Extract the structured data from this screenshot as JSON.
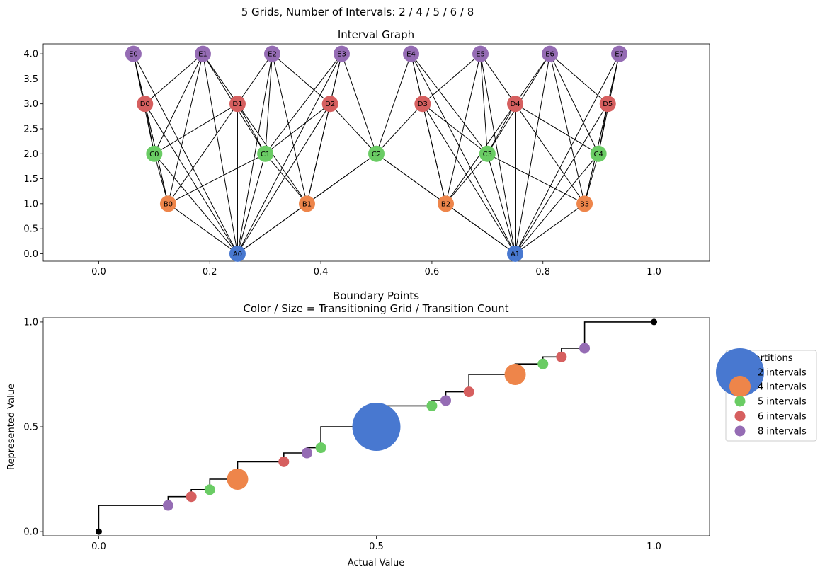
{
  "suptitle": "5 Grids, Number of Intervals: 2 / 4 / 5 / 6 / 8",
  "colors": {
    "A": "#4878d0",
    "B": "#ee854a",
    "C": "#6acc64",
    "D": "#d65f5f",
    "E": "#956cb4",
    "endpoint": "#000000"
  },
  "chart_data": [
    {
      "type": "network",
      "title": "Interval Graph",
      "xlim": [
        -0.1,
        1.1
      ],
      "ylim": [
        -0.15,
        4.2
      ],
      "xticks": [
        "0.0",
        "0.2",
        "0.4",
        "0.6",
        "0.8",
        "1.0"
      ],
      "xtick_values": [
        0,
        0.2,
        0.4,
        0.6,
        0.8,
        1.0
      ],
      "yticks": [
        "0.0",
        "0.5",
        "1.0",
        "1.5",
        "2.0",
        "2.5",
        "3.0",
        "3.5",
        "4.0"
      ],
      "ytick_values": [
        0,
        0.5,
        1,
        1.5,
        2,
        2.5,
        3,
        3.5,
        4
      ],
      "grid": false,
      "nodes": [
        {
          "id": "A0",
          "group": "A",
          "x": 0.25,
          "y": 0
        },
        {
          "id": "A1",
          "group": "A",
          "x": 0.75,
          "y": 0
        },
        {
          "id": "B0",
          "group": "B",
          "x": 0.125,
          "y": 1
        },
        {
          "id": "B1",
          "group": "B",
          "x": 0.375,
          "y": 1
        },
        {
          "id": "B2",
          "group": "B",
          "x": 0.625,
          "y": 1
        },
        {
          "id": "B3",
          "group": "B",
          "x": 0.875,
          "y": 1
        },
        {
          "id": "C0",
          "group": "C",
          "x": 0.1,
          "y": 2
        },
        {
          "id": "C1",
          "group": "C",
          "x": 0.3,
          "y": 2
        },
        {
          "id": "C2",
          "group": "C",
          "x": 0.5,
          "y": 2
        },
        {
          "id": "C3",
          "group": "C",
          "x": 0.7,
          "y": 2
        },
        {
          "id": "C4",
          "group": "C",
          "x": 0.9,
          "y": 2
        },
        {
          "id": "D0",
          "group": "D",
          "x": 0.0833,
          "y": 3
        },
        {
          "id": "D1",
          "group": "D",
          "x": 0.25,
          "y": 3
        },
        {
          "id": "D2",
          "group": "D",
          "x": 0.4167,
          "y": 3
        },
        {
          "id": "D3",
          "group": "D",
          "x": 0.5833,
          "y": 3
        },
        {
          "id": "D4",
          "group": "D",
          "x": 0.75,
          "y": 3
        },
        {
          "id": "D5",
          "group": "D",
          "x": 0.9167,
          "y": 3
        },
        {
          "id": "E0",
          "group": "E",
          "x": 0.0625,
          "y": 4
        },
        {
          "id": "E1",
          "group": "E",
          "x": 0.1875,
          "y": 4
        },
        {
          "id": "E2",
          "group": "E",
          "x": 0.3125,
          "y": 4
        },
        {
          "id": "E3",
          "group": "E",
          "x": 0.4375,
          "y": 4
        },
        {
          "id": "E4",
          "group": "E",
          "x": 0.5625,
          "y": 4
        },
        {
          "id": "E5",
          "group": "E",
          "x": 0.6875,
          "y": 4
        },
        {
          "id": "E6",
          "group": "E",
          "x": 0.8125,
          "y": 4
        },
        {
          "id": "E7",
          "group": "E",
          "x": 0.9375,
          "y": 4
        }
      ],
      "edges": [
        [
          "A0",
          "B0"
        ],
        [
          "A0",
          "B1"
        ],
        [
          "A0",
          "C0"
        ],
        [
          "A0",
          "C1"
        ],
        [
          "A0",
          "D0"
        ],
        [
          "A0",
          "D1"
        ],
        [
          "A0",
          "D2"
        ],
        [
          "A0",
          "E0"
        ],
        [
          "A0",
          "E1"
        ],
        [
          "A0",
          "E2"
        ],
        [
          "A0",
          "E3"
        ],
        [
          "A1",
          "B2"
        ],
        [
          "A1",
          "B3"
        ],
        [
          "A1",
          "C3"
        ],
        [
          "A1",
          "C4"
        ],
        [
          "A1",
          "D3"
        ],
        [
          "A1",
          "D4"
        ],
        [
          "A1",
          "D5"
        ],
        [
          "A1",
          "E4"
        ],
        [
          "A1",
          "E5"
        ],
        [
          "A1",
          "E6"
        ],
        [
          "A1",
          "E7"
        ],
        [
          "A0",
          "C2"
        ],
        [
          "A1",
          "C2"
        ],
        [
          "B0",
          "C0"
        ],
        [
          "B0",
          "C1"
        ],
        [
          "B0",
          "D0"
        ],
        [
          "B0",
          "D1"
        ],
        [
          "B0",
          "E0"
        ],
        [
          "B0",
          "E1"
        ],
        [
          "B1",
          "C1"
        ],
        [
          "B1",
          "C2"
        ],
        [
          "B1",
          "D1"
        ],
        [
          "B1",
          "D2"
        ],
        [
          "B1",
          "E2"
        ],
        [
          "B1",
          "E3"
        ],
        [
          "B2",
          "C2"
        ],
        [
          "B2",
          "C3"
        ],
        [
          "B2",
          "D3"
        ],
        [
          "B2",
          "D4"
        ],
        [
          "B2",
          "E4"
        ],
        [
          "B2",
          "E5"
        ],
        [
          "B3",
          "C3"
        ],
        [
          "B3",
          "C4"
        ],
        [
          "B3",
          "D4"
        ],
        [
          "B3",
          "D5"
        ],
        [
          "B3",
          "E6"
        ],
        [
          "B3",
          "E7"
        ],
        [
          "C0",
          "D0"
        ],
        [
          "C0",
          "D1"
        ],
        [
          "C0",
          "E0"
        ],
        [
          "C0",
          "E1"
        ],
        [
          "C1",
          "D1"
        ],
        [
          "C1",
          "D2"
        ],
        [
          "C1",
          "E1"
        ],
        [
          "C1",
          "E2"
        ],
        [
          "C1",
          "E3"
        ],
        [
          "C2",
          "D2"
        ],
        [
          "C2",
          "D3"
        ],
        [
          "C2",
          "E3"
        ],
        [
          "C2",
          "E4"
        ],
        [
          "C3",
          "D3"
        ],
        [
          "C3",
          "D4"
        ],
        [
          "C3",
          "E4"
        ],
        [
          "C3",
          "E5"
        ],
        [
          "C3",
          "E6"
        ],
        [
          "C4",
          "D4"
        ],
        [
          "C4",
          "D5"
        ],
        [
          "C4",
          "E6"
        ],
        [
          "C4",
          "E7"
        ],
        [
          "D0",
          "E0"
        ],
        [
          "D0",
          "E1"
        ],
        [
          "D1",
          "E1"
        ],
        [
          "D1",
          "E2"
        ],
        [
          "D2",
          "E2"
        ],
        [
          "D2",
          "E3"
        ],
        [
          "D3",
          "E4"
        ],
        [
          "D3",
          "E5"
        ],
        [
          "D4",
          "E5"
        ],
        [
          "D4",
          "E6"
        ],
        [
          "D5",
          "E6"
        ],
        [
          "D5",
          "E7"
        ]
      ]
    },
    {
      "type": "step-scatter",
      "title": "Boundary Points",
      "subtitle": "Color / Size = Transitioning Grid / Transition Count",
      "xlabel": "Actual Value",
      "ylabel": "Represented Value",
      "xlim": [
        -0.1,
        1.1
      ],
      "ylim": [
        -0.02,
        1.02
      ],
      "xticks": [
        "0.0",
        "0.5",
        "1.0"
      ],
      "xtick_values": [
        0,
        0.5,
        1
      ],
      "yticks": [
        "0.0",
        "0.5",
        "1.0"
      ],
      "ytick_values": [
        0,
        0.5,
        1
      ],
      "grid": false,
      "legend": {
        "title": "Partitions",
        "placement": "right-outside",
        "entries": [
          {
            "label": "2 intervals",
            "group": "A",
            "size": 5
          },
          {
            "label": "4 intervals",
            "group": "B",
            "size": 2
          },
          {
            "label": "5 intervals",
            "group": "C",
            "size": 1
          },
          {
            "label": "6 intervals",
            "group": "D",
            "size": 1
          },
          {
            "label": "8 intervals",
            "group": "E",
            "size": 1
          }
        ]
      },
      "step_points": [
        {
          "x": 0,
          "y": 0
        },
        {
          "x": 0,
          "y": 0.125
        },
        {
          "x": 0.125,
          "y": 0.125
        },
        {
          "x": 0.125,
          "y": 0.1667
        },
        {
          "x": 0.1667,
          "y": 0.1667
        },
        {
          "x": 0.1667,
          "y": 0.2
        },
        {
          "x": 0.2,
          "y": 0.2
        },
        {
          "x": 0.2,
          "y": 0.25
        },
        {
          "x": 0.25,
          "y": 0.25
        },
        {
          "x": 0.25,
          "y": 0.3333
        },
        {
          "x": 0.3333,
          "y": 0.3333
        },
        {
          "x": 0.3333,
          "y": 0.375
        },
        {
          "x": 0.375,
          "y": 0.375
        },
        {
          "x": 0.375,
          "y": 0.4
        },
        {
          "x": 0.4,
          "y": 0.4
        },
        {
          "x": 0.4,
          "y": 0.5
        },
        {
          "x": 0.5,
          "y": 0.5
        },
        {
          "x": 0.5,
          "y": 0.6
        },
        {
          "x": 0.6,
          "y": 0.6
        },
        {
          "x": 0.6,
          "y": 0.625
        },
        {
          "x": 0.625,
          "y": 0.625
        },
        {
          "x": 0.625,
          "y": 0.6667
        },
        {
          "x": 0.6667,
          "y": 0.6667
        },
        {
          "x": 0.6667,
          "y": 0.75
        },
        {
          "x": 0.75,
          "y": 0.75
        },
        {
          "x": 0.75,
          "y": 0.8
        },
        {
          "x": 0.8,
          "y": 0.8
        },
        {
          "x": 0.8,
          "y": 0.8333
        },
        {
          "x": 0.8333,
          "y": 0.8333
        },
        {
          "x": 0.8333,
          "y": 0.875
        },
        {
          "x": 0.875,
          "y": 0.875
        },
        {
          "x": 0.875,
          "y": 1
        },
        {
          "x": 1,
          "y": 1
        }
      ],
      "endpoints": [
        {
          "x": 0,
          "y": 0
        },
        {
          "x": 1,
          "y": 1
        }
      ],
      "points": [
        {
          "x": 0.125,
          "y": 0.125,
          "group": "E",
          "count": 1
        },
        {
          "x": 0.1667,
          "y": 0.1667,
          "group": "D",
          "count": 1
        },
        {
          "x": 0.2,
          "y": 0.2,
          "group": "C",
          "count": 1
        },
        {
          "x": 0.25,
          "y": 0.25,
          "group": "B",
          "count": 2
        },
        {
          "x": 0.3333,
          "y": 0.3333,
          "group": "D",
          "count": 1
        },
        {
          "x": 0.375,
          "y": 0.375,
          "group": "E",
          "count": 1
        },
        {
          "x": 0.4,
          "y": 0.4,
          "group": "C",
          "count": 1
        },
        {
          "x": 0.5,
          "y": 0.5,
          "group": "A",
          "count": 5
        },
        {
          "x": 0.6,
          "y": 0.6,
          "group": "C",
          "count": 1
        },
        {
          "x": 0.625,
          "y": 0.625,
          "group": "E",
          "count": 1
        },
        {
          "x": 0.6667,
          "y": 0.6667,
          "group": "D",
          "count": 1
        },
        {
          "x": 0.75,
          "y": 0.75,
          "group": "B",
          "count": 2
        },
        {
          "x": 0.8,
          "y": 0.8,
          "group": "C",
          "count": 1
        },
        {
          "x": 0.8333,
          "y": 0.8333,
          "group": "D",
          "count": 1
        },
        {
          "x": 0.875,
          "y": 0.875,
          "group": "E",
          "count": 1
        }
      ]
    }
  ]
}
